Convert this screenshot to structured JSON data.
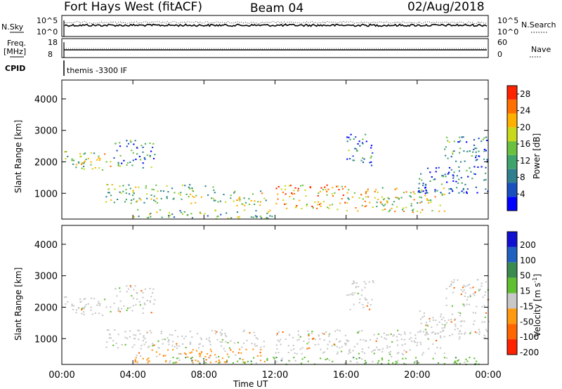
{
  "header": {
    "station": "Fort Hays West (fitACF)",
    "beam": "Beam 04",
    "date": "02/Aug/2018"
  },
  "panels": {
    "nsky_label": "N.Sky",
    "nsearch_label": "N.Search",
    "freq_label_1": "Freq.",
    "freq_label_2": "[MHz]",
    "nave_label": "Nave",
    "cpid_label": "CPID",
    "cpid_value": "themis -3300 IF",
    "nsky_ticks": [
      "10^5",
      "10^0"
    ],
    "nsearch_ticks": [
      "10^5",
      "10^0"
    ],
    "freq_ticks": [
      "18",
      "8"
    ],
    "nave_ticks": [
      "60",
      "0"
    ]
  },
  "colors": {
    "power": [
      "#0000ff",
      "#1a4fc0",
      "#2f7f8f",
      "#3fa46b",
      "#6cc040",
      "#c8d81a",
      "#ffb000",
      "#ff7000",
      "#ff2200"
    ],
    "velocity": [
      "#1010d0",
      "#2060c0",
      "#3b8a50",
      "#60c030",
      "#c8c8c8",
      "#ff9a10",
      "#ff6600",
      "#ff2200"
    ]
  },
  "chart_data": [
    {
      "type": "heatmap",
      "title": "",
      "xlabel": "Time UT",
      "ylabel": "Slant Range [km]",
      "xlim": [
        "00:00",
        "24:00"
      ],
      "ylim": [
        180,
        4600
      ],
      "x_ticks": [
        "00:00",
        "04:00",
        "08:00",
        "12:00",
        "16:00",
        "20:00",
        "00:00"
      ],
      "y_ticks": [
        1000,
        2000,
        3000,
        4000
      ],
      "colorbar": {
        "label": "Power [dB]",
        "min": 0,
        "max": 30,
        "ticks": [
          4,
          8,
          12,
          16,
          20,
          24,
          28
        ]
      },
      "regions": [
        {
          "t0": 0.0,
          "t1": 2.8,
          "r0": 1750,
          "r1": 2400,
          "level": 0.55
        },
        {
          "t0": 2.9,
          "t1": 5.2,
          "r0": 1800,
          "r1": 2700,
          "level": 0.3
        },
        {
          "t0": 2.4,
          "t1": 9.0,
          "r0": 700,
          "r1": 1300,
          "level": 0.5
        },
        {
          "t0": 9.0,
          "t1": 11.5,
          "r0": 600,
          "r1": 1100,
          "level": 0.55
        },
        {
          "t0": 12.0,
          "t1": 16.0,
          "r0": 500,
          "r1": 1300,
          "level": 0.75
        },
        {
          "t0": 16.0,
          "t1": 21.5,
          "r0": 400,
          "r1": 1200,
          "level": 0.6
        },
        {
          "t0": 20.0,
          "t1": 24.0,
          "r0": 1000,
          "r1": 1900,
          "level": 0.2
        },
        {
          "t0": 16.0,
          "t1": 17.5,
          "r0": 1900,
          "r1": 2900,
          "level": 0.3
        },
        {
          "t0": 21.5,
          "t1": 24.0,
          "r0": 2000,
          "r1": 2900,
          "level": 0.3
        },
        {
          "t0": 4.0,
          "t1": 12.0,
          "r0": 200,
          "r1": 500,
          "level": 0.45
        }
      ]
    },
    {
      "type": "heatmap",
      "title": "",
      "xlabel": "Time UT",
      "ylabel": "Slant Range [km]",
      "xlim": [
        "00:00",
        "24:00"
      ],
      "ylim": [
        180,
        4600
      ],
      "x_ticks": [
        "00:00",
        "04:00",
        "08:00",
        "12:00",
        "16:00",
        "20:00",
        "00:00"
      ],
      "y_ticks": [
        1000,
        2000,
        3000,
        4000
      ],
      "colorbar": {
        "label": "Velocity [m s",
        "label_sup": "-1",
        "label_end": "]",
        "ticks": [
          "200",
          "100",
          "50",
          "15",
          "-15",
          "-50",
          "-100",
          "-200"
        ]
      },
      "regions": [
        {
          "t0": 0.0,
          "t1": 2.8,
          "r0": 1750,
          "r1": 2400,
          "kind": "gray"
        },
        {
          "t0": 2.9,
          "t1": 5.2,
          "r0": 1800,
          "r1": 2700,
          "kind": "gray"
        },
        {
          "t0": 2.4,
          "t1": 11.5,
          "r0": 700,
          "r1": 1300,
          "kind": "gray"
        },
        {
          "t0": 12.0,
          "t1": 21.5,
          "r0": 500,
          "r1": 1300,
          "kind": "gray"
        },
        {
          "t0": 4.0,
          "t1": 11.5,
          "r0": 250,
          "r1": 700,
          "kind": "orange"
        },
        {
          "t0": 6.0,
          "t1": 24.0,
          "r0": 200,
          "r1": 450,
          "kind": "green"
        },
        {
          "t0": 20.0,
          "t1": 24.0,
          "r0": 1000,
          "r1": 1900,
          "kind": "gray"
        },
        {
          "t0": 16.0,
          "t1": 17.5,
          "r0": 1900,
          "r1": 2900,
          "kind": "gray"
        },
        {
          "t0": 21.5,
          "t1": 24.0,
          "r0": 2000,
          "r1": 2900,
          "kind": "gray"
        }
      ]
    }
  ]
}
